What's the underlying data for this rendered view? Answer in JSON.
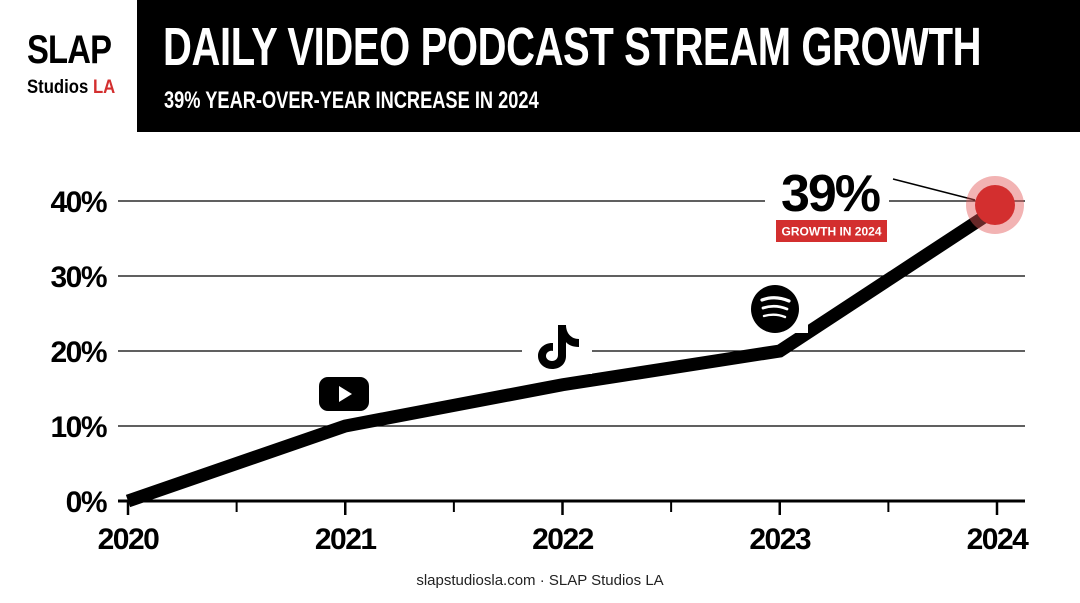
{
  "header": {
    "logo_top": "SLAP",
    "logo_bottom_main": "Studios",
    "logo_bottom_accent": "LA",
    "title": "DAILY VIDEO PODCAST STREAM GROWTH",
    "subtitle": "39% YEAR-OVER-YEAR INCREASE IN 2024"
  },
  "callout": {
    "value": "39%",
    "label": "GROWTH IN 2024"
  },
  "footer": {
    "text": "slapstudiosla.com · SLAP Studios LA"
  },
  "colors": {
    "header_bg": "#000000",
    "accent_red": "#d32f2f",
    "line": "#000000",
    "grid": "#000000"
  },
  "icons": {
    "marker_2021": "youtube-icon",
    "marker_2022": "tiktok-icon",
    "marker_2023": "spotify-icon"
  },
  "chart_data": {
    "type": "line",
    "title": "DAILY VIDEO PODCAST STREAM GROWTH",
    "subtitle": "39% YEAR-OVER-YEAR INCREASE IN 2024",
    "x": [
      "2020",
      "2021",
      "2022",
      "2023",
      "2024"
    ],
    "series": [
      {
        "values": [
          0,
          10,
          15.5,
          20,
          39
        ]
      }
    ],
    "ylim": [
      0,
      40
    ],
    "yticks": [
      0,
      10,
      20,
      30,
      40
    ],
    "ytick_labels": [
      "0%",
      "10%",
      "20%",
      "30%",
      "40%"
    ],
    "xlabel": "",
    "ylabel": "",
    "grid": true,
    "annotation": {
      "x": "2024",
      "value": "39%",
      "label": "GROWTH IN 2024"
    }
  }
}
